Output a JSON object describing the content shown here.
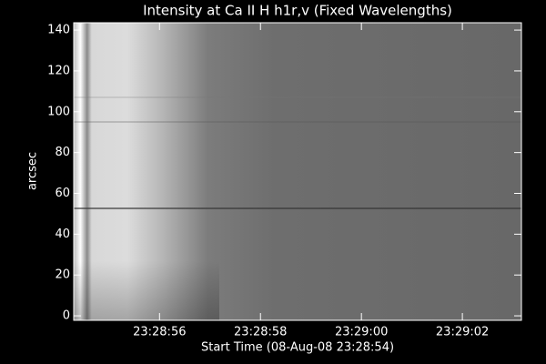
{
  "chart_data": {
    "type": "image",
    "title": "Intensity at Ca II H h1r,v (Fixed Wavelengths)",
    "xlabel": "Start Time (08-Aug-08 23:28:54)",
    "ylabel": "arcsec",
    "xlim": [
      0.3,
      9.17
    ],
    "xticks": [
      {
        "value": 2,
        "label": "23:28:56"
      },
      {
        "value": 4,
        "label": "23:28:58"
      },
      {
        "value": 6,
        "label": "23:29:00"
      },
      {
        "value": 8,
        "label": "23:29:02"
      }
    ],
    "ylim": [
      -2.2,
      143.6
    ],
    "yticks": [
      0,
      20,
      40,
      60,
      80,
      100,
      120,
      140
    ]
  }
}
